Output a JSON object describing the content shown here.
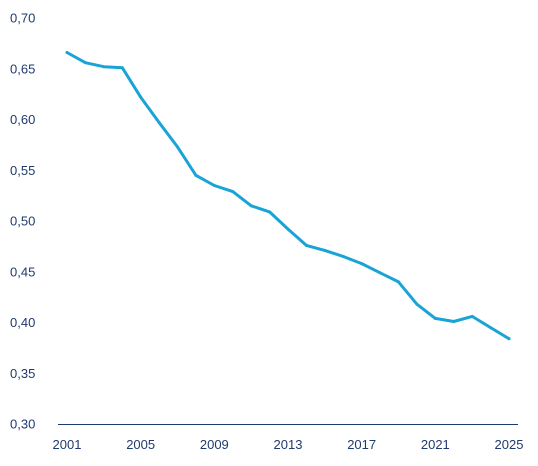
{
  "chart_data": {
    "type": "line",
    "title": "",
    "xlabel": "",
    "ylabel": "",
    "grid": false,
    "legend": "none",
    "xlim": [
      2001,
      2025
    ],
    "ylim": [
      0.3,
      0.7
    ],
    "x_ticks": [
      2001,
      2005,
      2009,
      2013,
      2017,
      2021,
      2025
    ],
    "x_tick_labels": [
      "2001",
      "2005",
      "2009",
      "2013",
      "2017",
      "2021",
      "2025"
    ],
    "y_ticks": [
      0.3,
      0.35,
      0.4,
      0.45,
      0.5,
      0.55,
      0.6,
      0.65,
      0.7
    ],
    "y_tick_labels": [
      "0,30",
      "0,35",
      "0,40",
      "0,45",
      "0,50",
      "0,55",
      "0,60",
      "0,65",
      "0,70"
    ],
    "colors": {
      "series": "#1aa3d6",
      "axis": "#1f3a6e",
      "text": "#1f3a6e"
    },
    "series": [
      {
        "x": [
          2001,
          2002,
          2003,
          2004,
          2005,
          2006,
          2007,
          2008,
          2009,
          2010,
          2011,
          2012,
          2013,
          2014,
          2015,
          2016,
          2017,
          2018,
          2019,
          2020,
          2021,
          2022,
          2023,
          2024,
          2025
        ],
        "values": [
          0.666,
          0.656,
          0.652,
          0.651,
          0.622,
          0.597,
          0.573,
          0.545,
          0.535,
          0.529,
          0.515,
          0.509,
          0.492,
          0.476,
          0.471,
          0.465,
          0.458,
          0.449,
          0.44,
          0.418,
          0.404,
          0.401,
          0.406,
          0.395,
          0.384
        ]
      }
    ]
  }
}
